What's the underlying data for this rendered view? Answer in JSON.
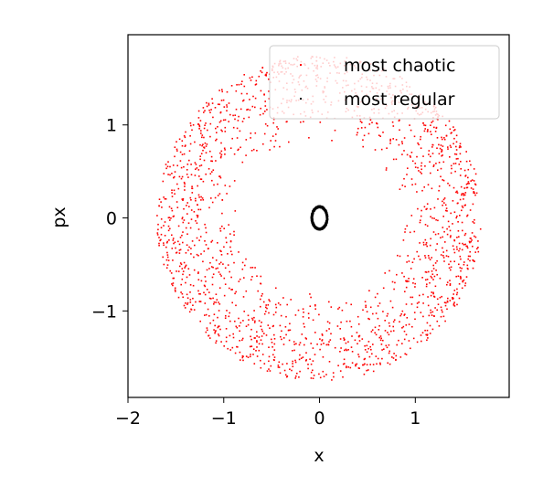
{
  "chart_data": {
    "type": "scatter",
    "title": "",
    "xlabel": "x",
    "ylabel": "px",
    "xlim": [
      -2.0,
      1.98
    ],
    "ylim": [
      -1.93,
      1.97
    ],
    "xticks": [
      -2,
      -1,
      0,
      1
    ],
    "yticks": [
      -1,
      0,
      1
    ],
    "xtick_labels": [
      "−2",
      "−1",
      "0",
      "1"
    ],
    "ytick_labels": [
      "−1",
      "0",
      "1"
    ],
    "grid": false,
    "legend_position": "top-right",
    "series": [
      {
        "name": "most chaotic",
        "color": "#ff0000",
        "marker": "small-dot",
        "distribution": "annulus",
        "center": [
          0,
          0
        ],
        "inner_radius_x": 0.85,
        "outer_radius_x": 1.7,
        "inner_radius_y": 0.8,
        "outer_radius_y": 1.75,
        "point_count": 1900
      },
      {
        "name": "most regular",
        "color": "#000000",
        "marker": "small-dot",
        "distribution": "ellipse",
        "center": [
          0,
          0
        ],
        "radius_x": 0.08,
        "radius_y": 0.12,
        "point_count": 500
      }
    ]
  }
}
